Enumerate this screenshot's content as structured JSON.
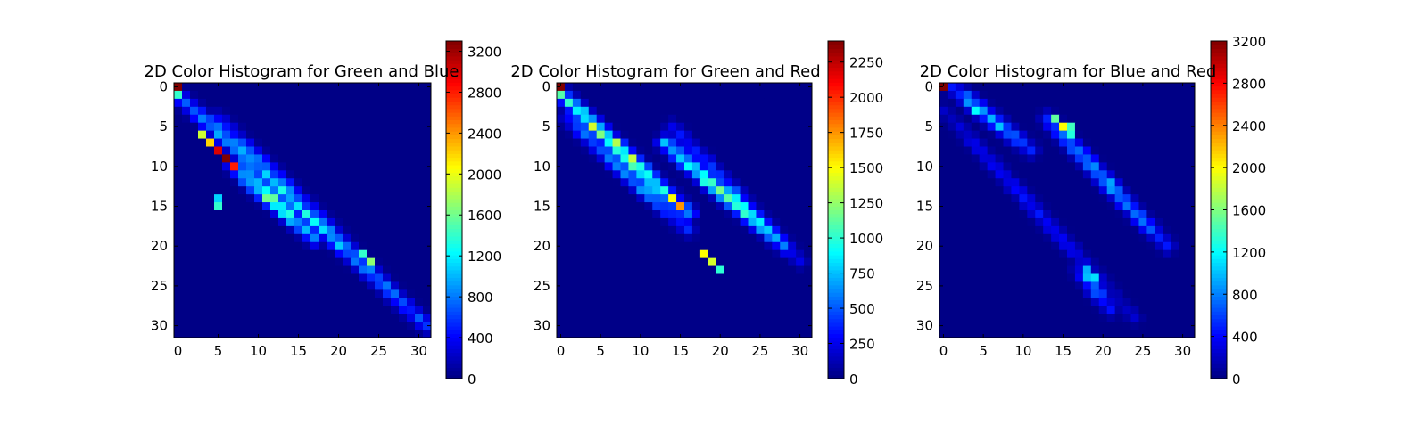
{
  "chart_data": [
    {
      "type": "heatmap",
      "title": "2D Color Histogram for Green and Blue",
      "xlabel": "",
      "ylabel": "",
      "bins": 32,
      "x_ticks": [
        0,
        5,
        10,
        15,
        20,
        25,
        30
      ],
      "y_ticks": [
        0,
        5,
        10,
        15,
        20,
        25,
        30
      ],
      "colorbar": {
        "vmin": 0,
        "vmax": 3300,
        "ticks": [
          0,
          400,
          800,
          1200,
          1600,
          2000,
          2400,
          2800,
          3200
        ]
      },
      "colormap": "jet",
      "hot_cells": [
        {
          "row": 0,
          "col": 0,
          "value": 3300
        },
        {
          "row": 1,
          "col": 0,
          "value": 1400
        },
        {
          "row": 8,
          "col": 5,
          "value": 3000
        },
        {
          "row": 9,
          "col": 6,
          "value": 3300
        },
        {
          "row": 10,
          "col": 7,
          "value": 2800
        },
        {
          "row": 7,
          "col": 4,
          "value": 2200
        },
        {
          "row": 6,
          "col": 3,
          "value": 1900
        },
        {
          "row": 21,
          "col": 23,
          "value": 1400
        },
        {
          "row": 22,
          "col": 24,
          "value": 1700
        },
        {
          "row": 15,
          "col": 5,
          "value": 1400
        },
        {
          "row": 14,
          "col": 5,
          "value": 1100
        }
      ],
      "bands": [
        {
          "from": [
            1,
            0
          ],
          "to": [
            30,
            31
          ],
          "peak": 1100
        },
        {
          "from": [
            10,
            7
          ],
          "to": [
            19,
            17
          ],
          "peak": 1500
        },
        {
          "from": [
            4,
            5
          ],
          "to": [
            24,
            25
          ],
          "peak": 700
        }
      ]
    },
    {
      "type": "heatmap",
      "title": "2D Color Histogram for Green and Red",
      "xlabel": "",
      "ylabel": "",
      "bins": 32,
      "x_ticks": [
        0,
        5,
        10,
        15,
        20,
        25,
        30
      ],
      "y_ticks": [
        0,
        5,
        10,
        15,
        20,
        25,
        30
      ],
      "colorbar": {
        "vmin": 0,
        "vmax": 2400,
        "ticks": [
          0,
          250,
          500,
          750,
          1000,
          1250,
          1500,
          1750,
          2000,
          2250
        ]
      },
      "colormap": "jet",
      "hot_cells": [
        {
          "row": 0,
          "col": 0,
          "value": 2400
        },
        {
          "row": 1,
          "col": 0,
          "value": 1100
        },
        {
          "row": 15,
          "col": 15,
          "value": 1750
        },
        {
          "row": 14,
          "col": 14,
          "value": 1500
        },
        {
          "row": 21,
          "col": 18,
          "value": 1500
        },
        {
          "row": 22,
          "col": 19,
          "value": 1400
        },
        {
          "row": 23,
          "col": 20,
          "value": 1000
        },
        {
          "row": 5,
          "col": 4,
          "value": 1400
        }
      ],
      "bands": [
        {
          "from": [
            1,
            0
          ],
          "to": [
            16,
            16
          ],
          "peak": 1300
        },
        {
          "from": [
            4,
            1
          ],
          "to": [
            18,
            16
          ],
          "peak": 700
        },
        {
          "from": [
            7,
            13
          ],
          "to": [
            20,
            28
          ],
          "peak": 1100
        },
        {
          "from": [
            5,
            14
          ],
          "to": [
            22,
            30
          ],
          "peak": 450
        }
      ]
    },
    {
      "type": "heatmap",
      "title": "2D Color Histogram for Blue and Red",
      "xlabel": "",
      "ylabel": "",
      "bins": 32,
      "x_ticks": [
        0,
        5,
        10,
        15,
        20,
        25,
        30
      ],
      "y_ticks": [
        0,
        5,
        10,
        15,
        20,
        25,
        30
      ],
      "colorbar": {
        "vmin": 0,
        "vmax": 3200,
        "ticks": [
          0,
          400,
          800,
          1200,
          1600,
          2000,
          2400,
          2800,
          3200
        ]
      },
      "colormap": "jet",
      "hot_cells": [
        {
          "row": 0,
          "col": 0,
          "value": 3200
        },
        {
          "row": 5,
          "col": 15,
          "value": 2000
        },
        {
          "row": 4,
          "col": 14,
          "value": 1500
        },
        {
          "row": 5,
          "col": 16,
          "value": 1400
        },
        {
          "row": 6,
          "col": 16,
          "value": 1300
        },
        {
          "row": 3,
          "col": 4,
          "value": 1200
        },
        {
          "row": 24,
          "col": 19,
          "value": 1100
        },
        {
          "row": 24,
          "col": 18,
          "value": 1000
        },
        {
          "row": 23,
          "col": 18,
          "value": 950
        }
      ],
      "bands": [
        {
          "from": [
            0,
            1
          ],
          "to": [
            8,
            11
          ],
          "peak": 900
        },
        {
          "from": [
            4,
            13
          ],
          "to": [
            20,
            28
          ],
          "peak": 900
        },
        {
          "from": [
            3,
            0
          ],
          "to": [
            29,
            24
          ],
          "peak": 380
        },
        {
          "from": [
            23,
            17
          ],
          "to": [
            28,
            21
          ],
          "peak": 700
        }
      ]
    }
  ]
}
